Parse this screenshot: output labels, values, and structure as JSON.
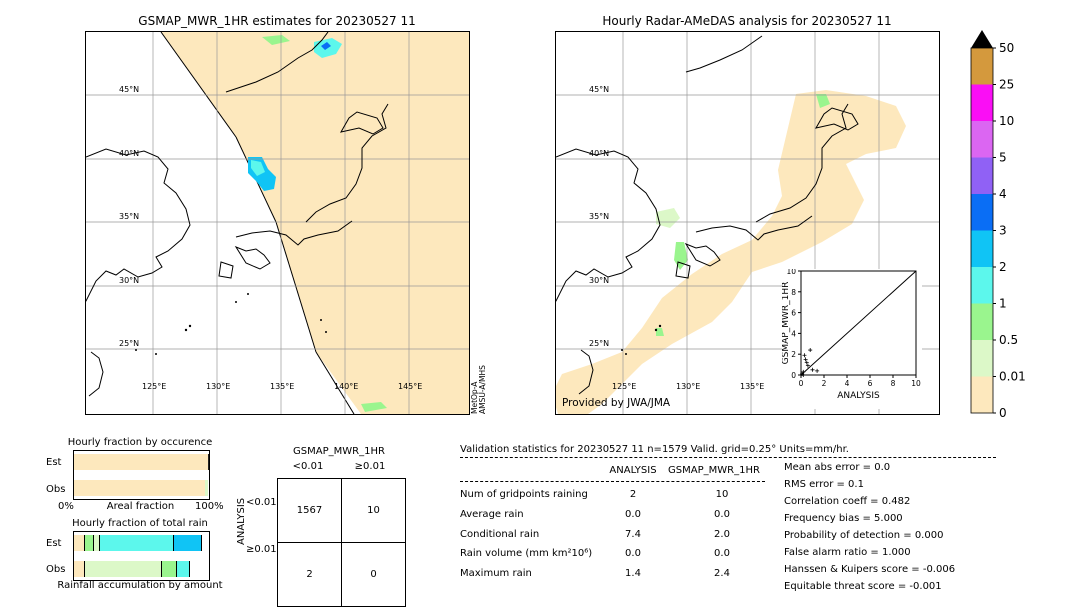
{
  "left_map": {
    "title": "GSMAP_MWR_1HR estimates for 20230527 11",
    "lat_labels": [
      "45°N",
      "40°N",
      "35°N",
      "30°N",
      "25°N"
    ],
    "lon_labels": [
      "125°E",
      "130°E",
      "135°E",
      "140°E",
      "145°E"
    ],
    "side_note": "MetOp-A\nAMSU-A/MHS"
  },
  "right_map": {
    "title": "Hourly Radar-AMeDAS analysis for 20230527 11",
    "lat_labels": [
      "45°N",
      "40°N",
      "35°N",
      "30°N",
      "25°N"
    ],
    "lon_labels": [
      "125°E",
      "130°E",
      "135°E"
    ],
    "provider": "Provided by JWA/JMA"
  },
  "colorbar": {
    "levels": [
      "0",
      "0.01",
      "0.5",
      "1",
      "2",
      "3",
      "4",
      "5",
      "10",
      "25",
      "50"
    ],
    "colors": [
      "#fde8bd",
      "#dcf8c8",
      "#9af58e",
      "#5cf7ec",
      "#10c4f5",
      "#0a6ef5",
      "#9061f5",
      "#db66f2",
      "#fa0ef5",
      "#d4993d"
    ]
  },
  "chart_data": [
    {
      "type": "scatter",
      "title": "",
      "xlabel": "ANALYSIS",
      "ylabel": "GSMAP_MWR_1HR",
      "xlim": [
        0,
        10
      ],
      "ylim": [
        0,
        10
      ],
      "x_ticks": [
        "0",
        "2",
        "4",
        "6",
        "8",
        "10"
      ],
      "y_ticks": [
        "0",
        "2",
        "4",
        "6",
        "8",
        "10"
      ],
      "points": [
        {
          "x": 0.1,
          "y": 0.1
        },
        {
          "x": 0.2,
          "y": 0.3
        },
        {
          "x": 0.4,
          "y": 1.5
        },
        {
          "x": 0.5,
          "y": 1.2
        },
        {
          "x": 0.3,
          "y": 1.9
        },
        {
          "x": 0.8,
          "y": 2.4
        },
        {
          "x": 1.0,
          "y": 0.5
        },
        {
          "x": 1.4,
          "y": 0.4
        },
        {
          "x": 0.6,
          "y": 0.9
        },
        {
          "x": 0.2,
          "y": 0.0
        }
      ]
    },
    {
      "type": "bar",
      "title": "Hourly fraction by occurence",
      "categories": [
        "Est",
        "Obs"
      ],
      "xlabel": "Areal fraction",
      "x_ticks": [
        "0%",
        "100%"
      ],
      "series": [
        {
          "color": "#fde8bd",
          "values": [
            0.99,
            0.97
          ]
        },
        {
          "color": "#dcf8c8",
          "values": [
            0.0,
            0.02
          ]
        },
        {
          "color": "#5cf7ec",
          "values": [
            0.0,
            0.0
          ]
        },
        {
          "color": "#222222",
          "values": [
            0.01,
            0.0
          ]
        }
      ]
    },
    {
      "type": "bar",
      "title": "Hourly fraction of total rain",
      "categories": [
        "Est",
        "Obs"
      ],
      "xlabel": "Rainfall accumulation by amount",
      "est_segments": [
        {
          "color": "#fde8bd",
          "value": 0.08
        },
        {
          "color": "#9af58e",
          "value": 0.07
        },
        {
          "color": "#dcf8c8",
          "value": 0.04
        },
        {
          "color": "#5cf7ec",
          "value": 0.55
        },
        {
          "color": "#10c4f5",
          "value": 0.21
        }
      ],
      "obs_segments": [
        {
          "color": "#fde8bd",
          "value": 0.08
        },
        {
          "color": "#dcf8c8",
          "value": 0.57
        },
        {
          "color": "#9af58e",
          "value": 0.11
        },
        {
          "color": "#5cf7ec",
          "value": 0.1
        }
      ]
    }
  ],
  "contingency": {
    "title": "GSMAP_MWR_1HR",
    "col_headers": [
      "<0.01",
      "≥0.01"
    ],
    "row_axis": "ANALYSIS",
    "row_headers": [
      "<0.01",
      "≥0.01"
    ],
    "cells": [
      [
        "1567",
        "10"
      ],
      [
        "2",
        "0"
      ]
    ]
  },
  "validation": {
    "header": "Validation statistics for 20230527 11  n=1579 Valid. grid=0.25° Units=mm/hr.",
    "col_analysis": "ANALYSIS",
    "col_gsmap": "GSMAP_MWR_1HR",
    "rows": [
      {
        "label": "Num of gridpoints raining",
        "a": "2",
        "g": "10"
      },
      {
        "label": "Average rain",
        "a": "0.0",
        "g": "0.0"
      },
      {
        "label": "Conditional rain",
        "a": "7.4",
        "g": "2.0"
      },
      {
        "label": "Rain volume (mm km²10⁶)",
        "a": "0.0",
        "g": "0.0"
      },
      {
        "label": "Maximum rain",
        "a": "1.4",
        "g": "2.4"
      }
    ],
    "scores": [
      "Mean abs error =    0.0",
      "RMS error =    0.1",
      "Correlation coeff =  0.482",
      "Frequency bias =  5.000",
      "Probability of detection =  0.000",
      "False alarm ratio =  1.000",
      "Hanssen & Kuipers score = -0.006",
      "Equitable threat score = -0.001"
    ]
  }
}
